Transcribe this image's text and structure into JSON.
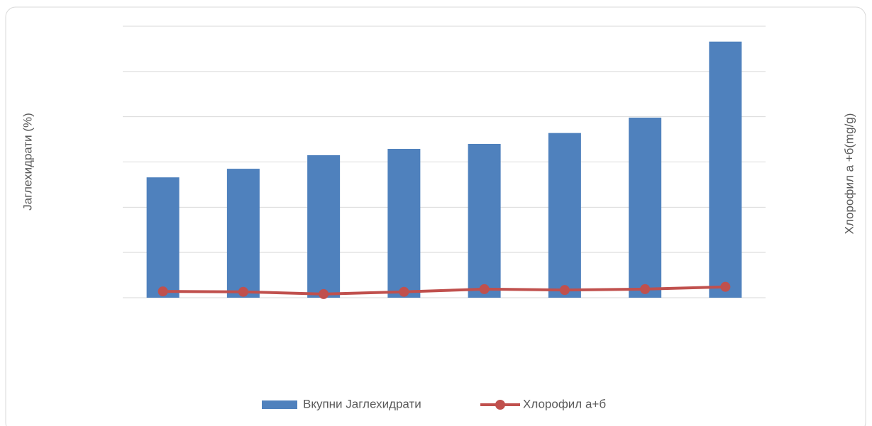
{
  "chart_data": {
    "type": "bar",
    "categories": [
      null,
      null,
      null,
      null,
      null,
      null,
      null,
      null
    ],
    "ylabel": "Јаглехидрати (%)",
    "y2label": "Хлорофил а +б(mg/g)",
    "ylim": [
      0,
      60
    ],
    "yticks": [
      0,
      10,
      20,
      30,
      40,
      50,
      60
    ],
    "y2lim": [
      0,
      6
    ],
    "grid": true,
    "legend": "bottom",
    "series": [
      {
        "name": "Вкупни Јаглехидрати",
        "type": "bar",
        "color": "#4f81bd",
        "values": [
          26.6,
          28.5,
          31.5,
          32.9,
          34.0,
          36.4,
          39.8,
          56.6
        ]
      },
      {
        "name": "Хлорофил а+б",
        "type": "line",
        "axis": "y2",
        "color": "#c0504d",
        "values": [
          0.14,
          0.13,
          0.08,
          0.13,
          0.19,
          0.17,
          0.19,
          0.24
        ]
      }
    ]
  }
}
